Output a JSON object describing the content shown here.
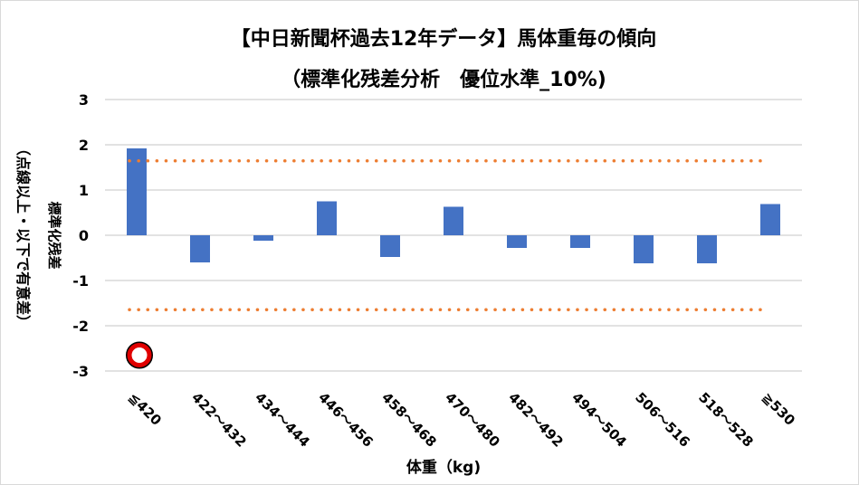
{
  "chart_data": {
    "type": "bar",
    "title": "【中日新聞杯過去12年データ】馬体重毎の傾向",
    "subtitle": "（標準化残差分析　優位水準_10%)",
    "xlabel": "体重（kg)",
    "ylabel": "標準化残差",
    "ylabel2": "（点線以上・以下で有意差）",
    "ylim": [
      -3,
      3
    ],
    "yticks": [
      3,
      2,
      1,
      0,
      -1,
      -2,
      -3
    ],
    "grid": true,
    "categories": [
      "≦420",
      "422～432",
      "434～444",
      "446～456",
      "458～468",
      "470～480",
      "482～492",
      "494～504",
      "506～516",
      "518～528",
      "≧530"
    ],
    "values": [
      1.92,
      -0.6,
      -0.12,
      0.75,
      -0.48,
      0.63,
      -0.28,
      -0.28,
      -0.62,
      -0.62,
      0.69
    ],
    "threshold_lines": [
      1.645,
      -1.645
    ],
    "marker": {
      "category": "≦420",
      "value": -2.65,
      "symbol": "circle"
    },
    "colors": {
      "bar": "#4472c4",
      "threshold": "#ed7d31",
      "grid": "#d9d9d9",
      "marker": "#e00000"
    }
  }
}
